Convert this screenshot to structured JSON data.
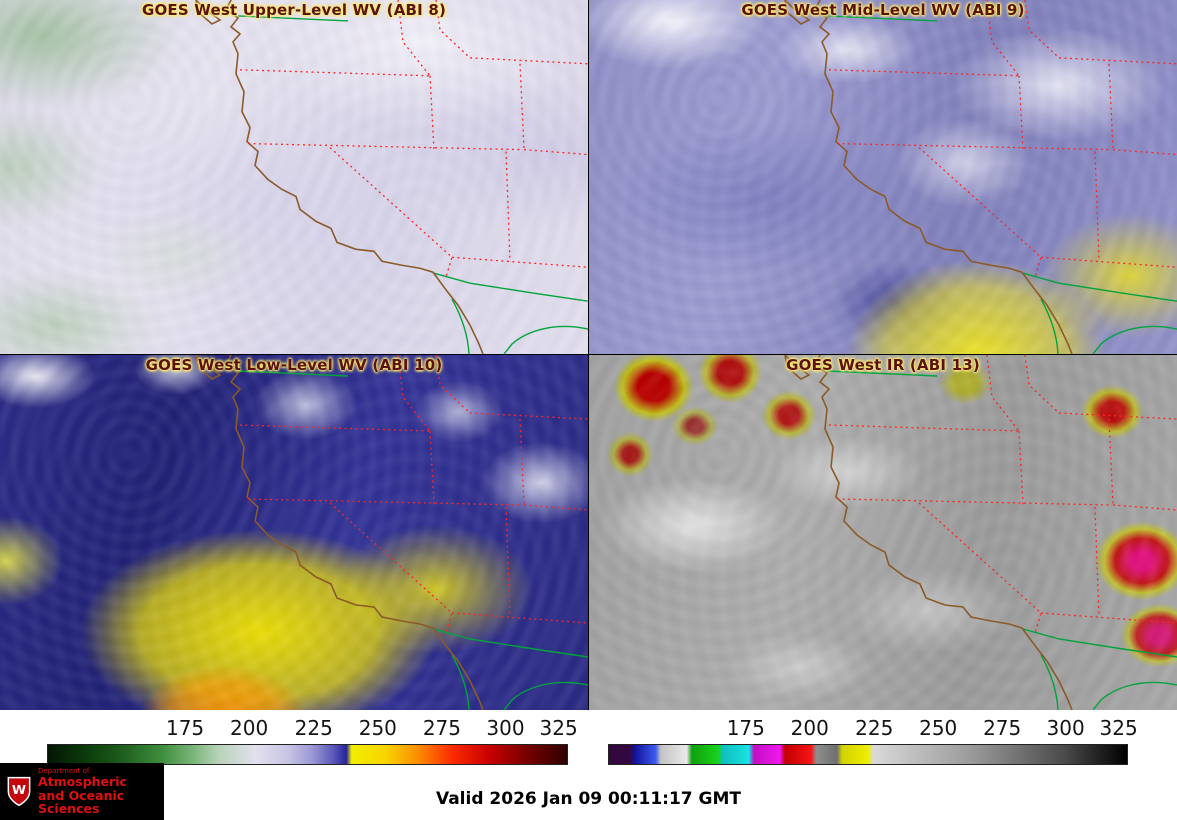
{
  "panels": [
    {
      "id": "upper-wv",
      "title": "GOES West Upper-Level WV (ABI 8)"
    },
    {
      "id": "mid-wv",
      "title": "GOES West Mid-Level WV (ABI 9)"
    },
    {
      "id": "low-wv",
      "title": "GOES West Low-Level WV (ABI 10)"
    },
    {
      "id": "ir",
      "title": "GOES West IR (ABI 13)"
    }
  ],
  "colorbars": {
    "ticks": [
      "175",
      "200",
      "225",
      "250",
      "275",
      "300",
      "325"
    ],
    "tick_positions_pct": [
      26.5,
      38.8,
      51.2,
      63.5,
      75.8,
      88.0,
      98.2
    ],
    "wv_stops": [
      {
        "c": "#051505",
        "p": 0
      },
      {
        "c": "#0b3a0b",
        "p": 7
      },
      {
        "c": "#1d5c1d",
        "p": 14
      },
      {
        "c": "#3e8e3e",
        "p": 22
      },
      {
        "c": "#7ab67a",
        "p": 28
      },
      {
        "c": "#b9d3b9",
        "p": 33
      },
      {
        "c": "#e2e0ee",
        "p": 40
      },
      {
        "c": "#c9c6e4",
        "p": 46
      },
      {
        "c": "#9a97d4",
        "p": 51
      },
      {
        "c": "#5a57b8",
        "p": 55
      },
      {
        "c": "#26249a",
        "p": 57.5
      },
      {
        "c": "#f2ee00",
        "p": 58.5
      },
      {
        "c": "#f8d400",
        "p": 65
      },
      {
        "c": "#fb9100",
        "p": 71
      },
      {
        "c": "#fb2a00",
        "p": 78
      },
      {
        "c": "#c90000",
        "p": 85
      },
      {
        "c": "#7a0000",
        "p": 92
      },
      {
        "c": "#2e0000",
        "p": 100
      }
    ],
    "ir_stops": [
      {
        "c": "#33083f",
        "p": 0
      },
      {
        "c": "#33083f",
        "p": 4
      },
      {
        "c": "#12129a",
        "p": 5
      },
      {
        "c": "#3b5bee",
        "p": 9
      },
      {
        "c": "#c4c4c4",
        "p": 10
      },
      {
        "c": "#e9e9e9",
        "p": 15
      },
      {
        "c": "#0f9f0f",
        "p": 16
      },
      {
        "c": "#19d219",
        "p": 21
      },
      {
        "c": "#0fbfbf",
        "p": 22
      },
      {
        "c": "#19e2e2",
        "p": 27
      },
      {
        "c": "#c20fc2",
        "p": 28
      },
      {
        "c": "#ee19ee",
        "p": 33
      },
      {
        "c": "#c20000",
        "p": 34
      },
      {
        "c": "#f81414",
        "p": 39
      },
      {
        "c": "#8f8f8f",
        "p": 40
      },
      {
        "c": "#6f6f6f",
        "p": 44
      },
      {
        "c": "#d2d200",
        "p": 45
      },
      {
        "c": "#eeee00",
        "p": 50
      },
      {
        "c": "#d9d9d9",
        "p": 51
      },
      {
        "c": "#9a9a9a",
        "p": 70
      },
      {
        "c": "#4a4a4a",
        "p": 88
      },
      {
        "c": "#000000",
        "p": 100
      }
    ]
  },
  "map_colors": {
    "coastline": "#8a5a28",
    "state-border": "#ff2424",
    "international": "#00a43c"
  },
  "footer": {
    "valid_text": "Valid 2026 Jan 09 00:11:17 GMT",
    "logo": {
      "crest_letter": "W",
      "line_small": "Department of",
      "line1": "Atmospheric",
      "line2": "and Oceanic Sciences"
    }
  }
}
